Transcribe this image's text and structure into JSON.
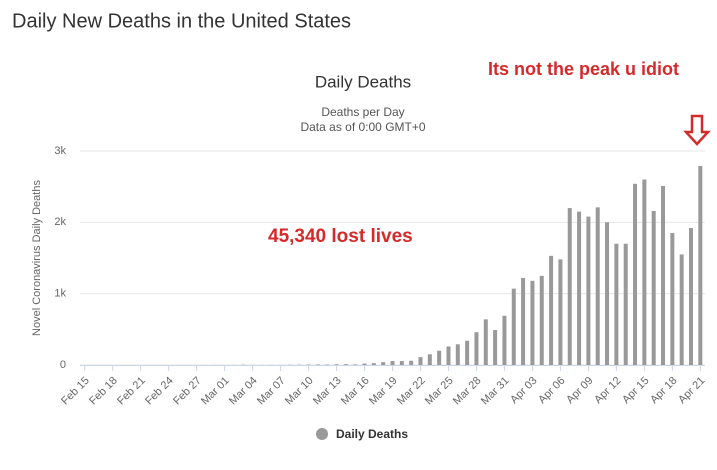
{
  "page_title": "Daily New Deaths in the United States",
  "chart_data": {
    "type": "bar",
    "title": "Daily Deaths",
    "subtitle": [
      "Deaths per Day",
      "Data as of 0:00 GMT+0"
    ],
    "ylabel": "Novel Coronavirus Daily Deaths",
    "annotations": [
      "Its not the peak u idiot",
      "45,340 lost lives"
    ],
    "categories": [
      "Feb 15",
      null,
      null,
      "Feb 18",
      null,
      null,
      "Feb 21",
      null,
      null,
      "Feb 24",
      null,
      null,
      "Feb 27",
      null,
      null,
      "Mar 01",
      null,
      null,
      "Mar 04",
      null,
      null,
      "Mar 07",
      null,
      null,
      "Mar 10",
      null,
      null,
      "Mar 13",
      null,
      null,
      "Mar 16",
      null,
      null,
      "Mar 19",
      null,
      null,
      "Mar 22",
      null,
      null,
      "Mar 25",
      null,
      null,
      "Mar 28",
      null,
      null,
      "Mar 31",
      null,
      null,
      "Apr 03",
      null,
      null,
      "Apr 06",
      null,
      null,
      "Apr 09",
      null,
      null,
      "Apr 12",
      null,
      null,
      "Apr 15",
      null,
      null,
      "Apr 18",
      null,
      null,
      "Apr 21"
    ],
    "series": [
      {
        "name": "Daily Deaths",
        "color": "#999999",
        "values": [
          0,
          0,
          0,
          0,
          0,
          0,
          0,
          0,
          0,
          0,
          0,
          0,
          0,
          0,
          1,
          0,
          1,
          4,
          1,
          1,
          2,
          1,
          3,
          4,
          6,
          8,
          7,
          10,
          12,
          9,
          20,
          25,
          40,
          55,
          55,
          60,
          110,
          150,
          200,
          260,
          290,
          340,
          460,
          640,
          490,
          690,
          1070,
          1220,
          1180,
          1250,
          1530,
          1480,
          2200,
          2150,
          2080,
          2210,
          2000,
          1700,
          1700,
          2540,
          2600,
          2160,
          2510,
          1850,
          1550,
          1920,
          2790
        ]
      }
    ],
    "ylim": [
      0,
      3000
    ],
    "yticks": [
      0,
      {
        "value": 1000,
        "label": "1k"
      },
      {
        "value": 2000,
        "label": "2k"
      },
      {
        "value": 3000,
        "label": "3k"
      }
    ],
    "grid": true,
    "legend": "bottom"
  }
}
